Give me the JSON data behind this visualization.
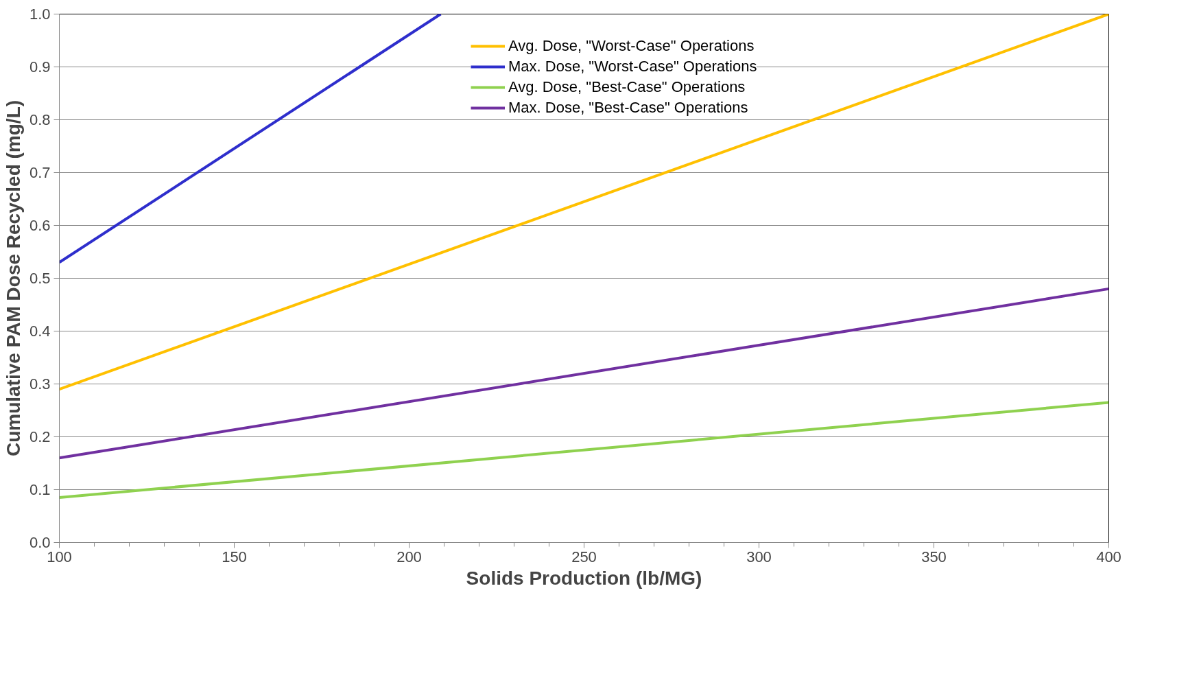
{
  "chart_data": {
    "type": "line",
    "xlabel": "Solids Production (lb/MG)",
    "ylabel": "Cumulative PAM Dose Recycled (mg/L)",
    "xlim": [
      100,
      400
    ],
    "xticks": [
      100,
      150,
      200,
      250,
      300,
      350,
      400
    ],
    "ylim": [
      0.0,
      1.0
    ],
    "yticks": [
      {
        "value": 0.0,
        "label": "0.0"
      },
      0.1,
      0.2,
      0.3,
      0.4,
      0.5,
      0.6,
      0.7,
      0.8,
      0.9,
      {
        "value": 1.0,
        "label": "1.0"
      }
    ],
    "grid": "y",
    "legend": "top",
    "marker": "none",
    "line_style": "solid",
    "series": [
      {
        "name": "Avg. Dose, \"Worst-Case\" Operations",
        "color": "#ffc000",
        "x": [
          100,
          400
        ],
        "values": [
          0.29,
          1.0
        ]
      },
      {
        "name": "Max. Dose, \"Worst-Case\" Operations",
        "color": "#2e2ecc",
        "x": [
          100,
          209
        ],
        "values": [
          0.53,
          1.0
        ]
      },
      {
        "name": "Avg. Dose, \"Best-Case\" Operations",
        "color": "#8fd14f",
        "x": [
          100,
          400
        ],
        "values": [
          0.085,
          0.265
        ]
      },
      {
        "name": "Max. Dose, \"Best-Case\" Operations",
        "color": "#7030a0",
        "x": [
          100,
          400
        ],
        "values": [
          0.16,
          0.48
        ]
      }
    ]
  }
}
